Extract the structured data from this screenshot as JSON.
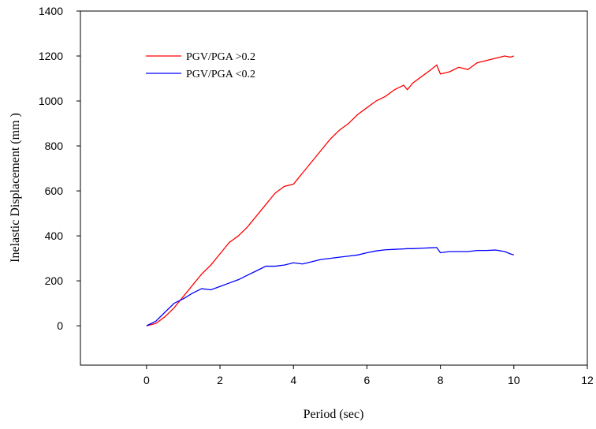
{
  "chart_data": {
    "type": "line",
    "xlabel": "Period (sec)",
    "ylabel": "Inelastic Displacement (mm )",
    "x": [
      0,
      0.25,
      0.5,
      0.75,
      1,
      1.25,
      1.5,
      1.75,
      2,
      2.25,
      2.5,
      2.75,
      3,
      3.25,
      3.5,
      3.75,
      4,
      4.25,
      4.5,
      4.75,
      5,
      5.25,
      5.5,
      5.75,
      6,
      6.25,
      6.5,
      6.75,
      7,
      7.1,
      7.25,
      7.5,
      7.75,
      7.9,
      8,
      8.25,
      8.5,
      8.75,
      9,
      9.25,
      9.5,
      9.75,
      9.9,
      10
    ],
    "series": [
      {
        "name": "PGV/PGA >0.2",
        "color": "#ff0000",
        "values": [
          0,
          10,
          40,
          80,
          130,
          180,
          230,
          270,
          320,
          370,
          400,
          440,
          490,
          540,
          590,
          620,
          630,
          680,
          730,
          780,
          830,
          870,
          900,
          940,
          970,
          1000,
          1020,
          1050,
          1070,
          1050,
          1080,
          1110,
          1140,
          1160,
          1120,
          1130,
          1150,
          1140,
          1170,
          1180,
          1190,
          1200,
          1195,
          1200
        ]
      },
      {
        "name": "PGV/PGA <0.2",
        "color": "#0000ff",
        "values": [
          0,
          20,
          60,
          100,
          120,
          145,
          165,
          160,
          175,
          190,
          205,
          225,
          245,
          265,
          265,
          270,
          280,
          275,
          285,
          295,
          300,
          305,
          310,
          315,
          325,
          333,
          338,
          340,
          342,
          343,
          343,
          345,
          347,
          348,
          325,
          330,
          330,
          330,
          335,
          335,
          337,
          330,
          320,
          315
        ]
      }
    ],
    "xlim": [
      -1.8,
      12
    ],
    "ylim": [
      -175,
      1400
    ],
    "xticks": [
      0,
      2,
      4,
      6,
      8,
      10,
      12
    ],
    "yticks": [
      0,
      200,
      400,
      600,
      800,
      1000,
      1200,
      1400
    ]
  }
}
